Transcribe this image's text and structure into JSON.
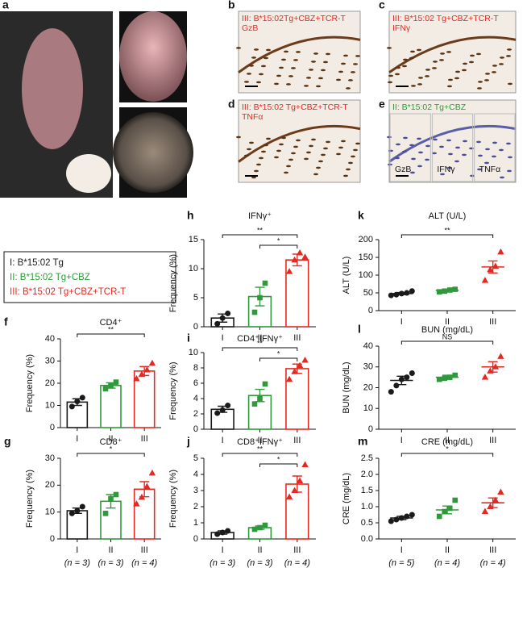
{
  "images": [
    {
      "label": "a"
    },
    {
      "label": "b",
      "lines": [
        "III: B*15:02Tg+CBZ+TCR-T",
        "GzB"
      ],
      "color": "#e32a22"
    },
    {
      "label": "c",
      "lines": [
        "III: B*15:02 Tg+CBZ+TCR-T",
        "IFNγ"
      ],
      "color": "#e32a22"
    },
    {
      "label": "d",
      "lines": [
        "III: B*15:02 Tg+CBZ+TCR-T",
        "TNFα"
      ],
      "color": "#e32a22"
    },
    {
      "label": "e",
      "lines": [
        "II: B*15:02 Tg+CBZ"
      ],
      "color": "#2e9a3a",
      "sub_labels": [
        "GzB",
        "IFNγ",
        "TNFα"
      ]
    }
  ],
  "legend": [
    {
      "text": "I: B*15:02 Tg",
      "color": "#1a1a1a"
    },
    {
      "text": "II: B*15:02 Tg+CBZ",
      "color": "#2e9a3a"
    },
    {
      "text": "III: B*15:02 Tg+CBZ+TCR-T",
      "color": "#e32a22"
    }
  ],
  "chart_data": [
    {
      "type": "bar",
      "panel": "f",
      "title": "CD4⁺",
      "ylabel": "Frequency (%)",
      "categories": [
        "I",
        "II",
        "III"
      ],
      "ylim": [
        0,
        40
      ],
      "yticks": [
        0,
        10,
        20,
        30,
        40
      ],
      "groups": [
        {
          "color": "#1a1a1a",
          "marker": "circle",
          "mean": 11.5,
          "sem": 1.5,
          "points": [
            9.5,
            11.8,
            13.5
          ]
        },
        {
          "color": "#2e9a3a",
          "marker": "square",
          "mean": 19,
          "sem": 1.2,
          "points": [
            17.5,
            19,
            20.5
          ]
        },
        {
          "color": "#e32a22",
          "marker": "triangle",
          "mean": 25.5,
          "sem": 2,
          "points": [
            22,
            24,
            26,
            29
          ]
        }
      ],
      "brackets": [
        {
          "from": "I",
          "to": "III",
          "label": "**"
        }
      ]
    },
    {
      "type": "bar",
      "panel": "g",
      "title": "CD8⁺",
      "ylabel": "Frequency (%)",
      "categories": [
        "I",
        "II",
        "III"
      ],
      "n_labels": [
        "(n = 3)",
        "(n = 3)",
        "(n = 4)"
      ],
      "ylim": [
        0,
        30
      ],
      "yticks": [
        0,
        10,
        20,
        30
      ],
      "groups": [
        {
          "color": "#1a1a1a",
          "marker": "circle",
          "mean": 10.5,
          "sem": 1,
          "points": [
            9.5,
            10.5,
            12
          ]
        },
        {
          "color": "#2e9a3a",
          "marker": "square",
          "mean": 14,
          "sem": 2.5,
          "points": [
            9.5,
            15,
            16.5
          ]
        },
        {
          "color": "#e32a22",
          "marker": "triangle",
          "mean": 18.5,
          "sem": 2.8,
          "points": [
            13,
            15.5,
            19.5,
            24.5
          ]
        }
      ],
      "brackets": [
        {
          "from": "I",
          "to": "III",
          "label": "*"
        }
      ]
    },
    {
      "type": "bar",
      "panel": "h",
      "title": "IFNγ⁺",
      "ylabel": "Frequency (%)",
      "categories": [
        "I",
        "II",
        "III"
      ],
      "ylim": [
        0,
        15
      ],
      "yticks": [
        0,
        5,
        10,
        15
      ],
      "groups": [
        {
          "color": "#1a1a1a",
          "marker": "circle",
          "mean": 1.5,
          "sem": 0.7,
          "points": [
            0.5,
            1.5,
            2.3
          ]
        },
        {
          "color": "#2e9a3a",
          "marker": "square",
          "mean": 5.2,
          "sem": 1.6,
          "points": [
            2.5,
            5,
            7.5
          ]
        },
        {
          "color": "#e32a22",
          "marker": "triangle",
          "mean": 11.5,
          "sem": 1,
          "points": [
            9.5,
            11.5,
            12.7,
            12
          ]
        }
      ],
      "brackets": [
        {
          "from": "I",
          "to": "III",
          "label": "**"
        },
        {
          "from": "II",
          "to": "III",
          "label": "*"
        }
      ]
    },
    {
      "type": "bar",
      "panel": "i",
      "title": "CD4⁺IFNγ⁺",
      "ylabel": "Frequency (%)",
      "categories": [
        "I",
        "II",
        "III"
      ],
      "ylim": [
        0,
        10
      ],
      "yticks": [
        0,
        2,
        4,
        6,
        8,
        10
      ],
      "groups": [
        {
          "color": "#1a1a1a",
          "marker": "circle",
          "mean": 2.6,
          "sem": 0.4,
          "points": [
            2.1,
            2.5,
            3.1
          ]
        },
        {
          "color": "#2e9a3a",
          "marker": "square",
          "mean": 4.4,
          "sem": 0.8,
          "points": [
            3.3,
            4,
            5.9
          ]
        },
        {
          "color": "#e32a22",
          "marker": "triangle",
          "mean": 7.9,
          "sem": 0.6,
          "points": [
            6.5,
            7.5,
            8.3,
            9
          ]
        }
      ],
      "brackets": [
        {
          "from": "I",
          "to": "III",
          "label": "**"
        },
        {
          "from": "II",
          "to": "III",
          "label": "*"
        }
      ]
    },
    {
      "type": "bar",
      "panel": "j",
      "title": "CD8⁺IFNγ⁺",
      "ylabel": "Frequency (%)",
      "categories": [
        "I",
        "II",
        "III"
      ],
      "n_labels": [
        "(n = 3)",
        "(n = 3)",
        "(n = 4)"
      ],
      "ylim": [
        0,
        5
      ],
      "yticks": [
        0,
        1,
        2,
        3,
        4,
        5
      ],
      "groups": [
        {
          "color": "#1a1a1a",
          "marker": "circle",
          "mean": 0.4,
          "sem": 0.1,
          "points": [
            0.3,
            0.4,
            0.5
          ]
        },
        {
          "color": "#2e9a3a",
          "marker": "square",
          "mean": 0.7,
          "sem": 0.1,
          "points": [
            0.6,
            0.7,
            0.85
          ]
        },
        {
          "color": "#e32a22",
          "marker": "triangle",
          "mean": 3.4,
          "sem": 0.5,
          "points": [
            2.6,
            3,
            3.6,
            4.6
          ]
        }
      ],
      "brackets": [
        {
          "from": "I",
          "to": "III",
          "label": "**"
        },
        {
          "from": "II",
          "to": "III",
          "label": "*"
        }
      ]
    },
    {
      "type": "scatter",
      "panel": "k",
      "title": "ALT (U/L)",
      "ylabel": "ALT (U/L)",
      "categories": [
        "I",
        "II",
        "III"
      ],
      "ylim": [
        0,
        200
      ],
      "yticks": [
        0,
        50,
        100,
        150,
        200
      ],
      "groups": [
        {
          "color": "#1a1a1a",
          "marker": "circle",
          "mean": 48,
          "sem": 3,
          "points": [
            43,
            45,
            48,
            50,
            55
          ]
        },
        {
          "color": "#2e9a3a",
          "marker": "square",
          "mean": 57,
          "sem": 3,
          "points": [
            53,
            55,
            58,
            60
          ]
        },
        {
          "color": "#e32a22",
          "marker": "triangle",
          "mean": 123,
          "sem": 17,
          "points": [
            85,
            115,
            125,
            165
          ]
        }
      ],
      "brackets": [
        {
          "from": "I",
          "to": "III",
          "label": "**"
        }
      ]
    },
    {
      "type": "scatter",
      "panel": "l",
      "title": "BUN (mg/dL)",
      "ylabel": "BUN (mg/dL)",
      "categories": [
        "I",
        "II",
        "III"
      ],
      "ylim": [
        0,
        40
      ],
      "yticks": [
        0,
        10,
        20,
        30,
        40
      ],
      "groups": [
        {
          "color": "#1a1a1a",
          "marker": "circle",
          "mean": 23.5,
          "sem": 2,
          "points": [
            18,
            21,
            24,
            25,
            27
          ]
        },
        {
          "color": "#2e9a3a",
          "marker": "square",
          "mean": 25,
          "sem": 1,
          "points": [
            24,
            24.5,
            25,
            26
          ]
        },
        {
          "color": "#e32a22",
          "marker": "triangle",
          "mean": 30,
          "sem": 2.5,
          "points": [
            25,
            28,
            30,
            35
          ]
        }
      ],
      "brackets": [
        {
          "from": "I",
          "to": "III",
          "label": "NS"
        }
      ]
    },
    {
      "type": "scatter",
      "panel": "m",
      "title": "CRE (mg/dL)",
      "ylabel": "CRE (mg/dL)",
      "categories": [
        "I",
        "II",
        "III"
      ],
      "n_labels": [
        "(n = 5)",
        "(n = 4)",
        "(n = 4)"
      ],
      "ylim": [
        0,
        2.5
      ],
      "yticks": [
        {
          "value": 0,
          "label": "0.0"
        },
        {
          "value": 0.5,
          "label": "0.5"
        },
        {
          "value": 1,
          "label": "1.0"
        },
        {
          "value": 1.5,
          "label": "1.5"
        },
        {
          "value": 2,
          "label": "2.0"
        },
        {
          "value": 2.5,
          "label": "2.5"
        }
      ],
      "groups": [
        {
          "color": "#1a1a1a",
          "marker": "circle",
          "mean": 0.65,
          "sem": 0.05,
          "points": [
            0.55,
            0.6,
            0.65,
            0.7,
            0.75
          ]
        },
        {
          "color": "#2e9a3a",
          "marker": "square",
          "mean": 0.9,
          "sem": 0.12,
          "points": [
            0.7,
            0.85,
            0.95,
            1.2
          ]
        },
        {
          "color": "#e32a22",
          "marker": "triangle",
          "mean": 1.12,
          "sem": 0.15,
          "points": [
            0.85,
            1,
            1.2,
            1.45
          ]
        }
      ],
      "brackets": [
        {
          "from": "I",
          "to": "III",
          "label": "*"
        }
      ]
    }
  ]
}
